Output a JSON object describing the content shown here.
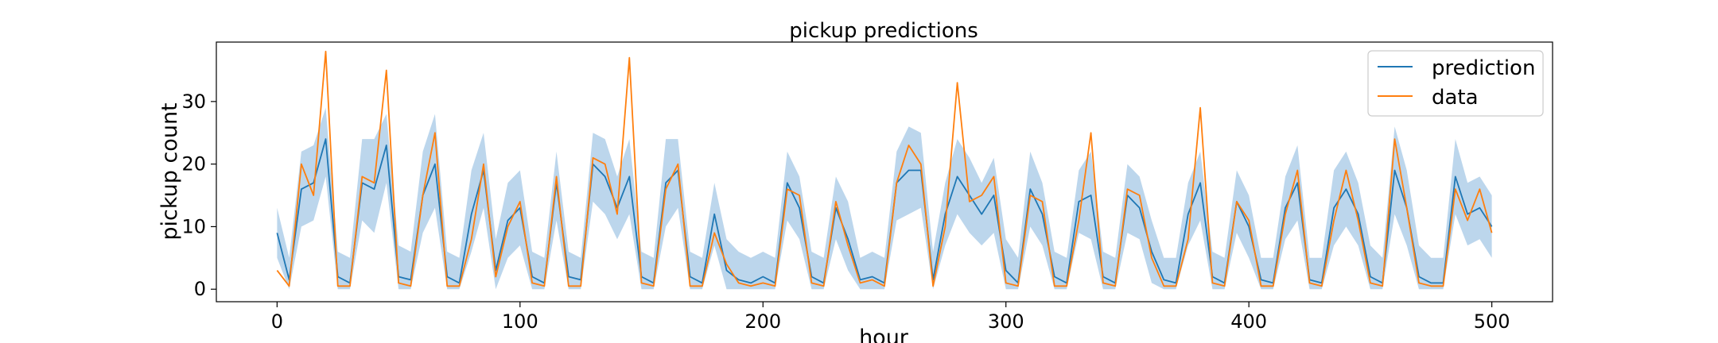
{
  "chart_data": {
    "type": "line",
    "title": "pickup predictions",
    "xlabel": "hour",
    "ylabel": "pickup count",
    "xlim": [
      -25,
      525
    ],
    "ylim": [
      -2,
      39.5
    ],
    "xticks": [
      0,
      100,
      200,
      300,
      400,
      500
    ],
    "yticks": [
      0,
      10,
      20,
      30
    ],
    "grid": false,
    "legend_position": "upper right",
    "colors": {
      "prediction": "#1f77b4",
      "data": "#ff7f0e",
      "band": "#a6c8e6"
    },
    "x": [
      0,
      5,
      10,
      15,
      20,
      25,
      30,
      35,
      40,
      45,
      50,
      55,
      60,
      65,
      70,
      75,
      80,
      85,
      90,
      95,
      100,
      105,
      110,
      115,
      120,
      125,
      130,
      135,
      140,
      145,
      150,
      155,
      160,
      165,
      170,
      175,
      180,
      185,
      190,
      195,
      200,
      205,
      210,
      215,
      220,
      225,
      230,
      235,
      240,
      245,
      250,
      255,
      260,
      265,
      270,
      275,
      280,
      285,
      290,
      295,
      300,
      305,
      310,
      315,
      320,
      325,
      330,
      335,
      340,
      345,
      350,
      355,
      360,
      365,
      370,
      375,
      380,
      385,
      390,
      395,
      400,
      405,
      410,
      415,
      420,
      425,
      430,
      435,
      440,
      445,
      450,
      455,
      460,
      465,
      470,
      475,
      480,
      485,
      490,
      495,
      500
    ],
    "series": [
      {
        "name": "prediction",
        "values": [
          9,
          1.5,
          16,
          17,
          24,
          2,
          1,
          17,
          16,
          23,
          2,
          1.5,
          15,
          20,
          2,
          1,
          12,
          19,
          3,
          11,
          13,
          2,
          1,
          17,
          2,
          1.5,
          20,
          18,
          13,
          18,
          2,
          1,
          17,
          19,
          2,
          1,
          12,
          3,
          1.5,
          1,
          2,
          1,
          17,
          13,
          2,
          1,
          13,
          8,
          1.5,
          2,
          1,
          17,
          19,
          19,
          1.5,
          12,
          18,
          15,
          12,
          15,
          3,
          1,
          16,
          12,
          2,
          1,
          14,
          15,
          2,
          1,
          15,
          13,
          6,
          1.5,
          1,
          12,
          17,
          2,
          1,
          14,
          10,
          1.5,
          1,
          13,
          17,
          1.5,
          1,
          13,
          16,
          12,
          2,
          1,
          19,
          13,
          2,
          1,
          1,
          18,
          12,
          13,
          10
        ],
        "band_upper": [
          13,
          5,
          22,
          23,
          29,
          6,
          5,
          24,
          24,
          28,
          7,
          6,
          22,
          28,
          6,
          5,
          19,
          25,
          8,
          17,
          19,
          6,
          5,
          22,
          6,
          5,
          25,
          24,
          18,
          24,
          6,
          5,
          24,
          24,
          6,
          5,
          17,
          8,
          6,
          5,
          6,
          5,
          22,
          18,
          6,
          5,
          18,
          14,
          5,
          6,
          5,
          22,
          26,
          25,
          6,
          17,
          24,
          21,
          17,
          21,
          8,
          5,
          22,
          17,
          6,
          5,
          19,
          22,
          6,
          5,
          20,
          18,
          11,
          5,
          5,
          17,
          22,
          6,
          5,
          19,
          15,
          5,
          5,
          18,
          23,
          5,
          5,
          19,
          22,
          17,
          7,
          5,
          26,
          19,
          7,
          5,
          5,
          24,
          17,
          18,
          15
        ],
        "band_lower": [
          5,
          0,
          10,
          11,
          18,
          0,
          0,
          11,
          9,
          17,
          0,
          0,
          9,
          13,
          0,
          0,
          6,
          13,
          0,
          5,
          7,
          0,
          0,
          11,
          0,
          0,
          14,
          12,
          8,
          12,
          0,
          0,
          10,
          13,
          0,
          0,
          7,
          0,
          0,
          0,
          0,
          0,
          11,
          8,
          0,
          0,
          8,
          3,
          0,
          0,
          0,
          11,
          12,
          13,
          0,
          7,
          12,
          9,
          7,
          9,
          0,
          0,
          10,
          7,
          0,
          0,
          9,
          8,
          0,
          0,
          9,
          8,
          1,
          0,
          0,
          7,
          11,
          0,
          0,
          9,
          5,
          0,
          0,
          8,
          11,
          0,
          0,
          7,
          10,
          7,
          0,
          0,
          12,
          7,
          0,
          0,
          0,
          12,
          7,
          8,
          5
        ]
      },
      {
        "name": "data",
        "values": [
          3,
          0.5,
          20,
          15,
          38,
          0.5,
          0.5,
          18,
          17,
          35,
          1,
          0.5,
          15,
          25,
          0.5,
          0.5,
          8,
          20,
          2,
          10,
          14,
          1,
          0.5,
          18,
          0.5,
          0.5,
          21,
          20,
          12,
          37,
          1,
          0.5,
          16,
          20,
          0.5,
          0.5,
          9,
          4,
          1,
          0.5,
          1,
          0.5,
          16,
          15,
          1,
          0.5,
          14,
          7,
          1,
          1.5,
          0.5,
          17,
          23,
          20,
          0.5,
          10,
          33,
          14,
          15,
          18,
          1,
          0.5,
          15,
          14,
          0.5,
          0.5,
          11,
          25,
          1,
          0.5,
          16,
          15,
          5,
          0.5,
          0.5,
          8,
          29,
          1,
          0.5,
          14,
          11,
          0.5,
          0.5,
          12,
          19,
          1,
          0.5,
          11,
          19,
          11,
          1,
          0.5,
          24,
          13,
          1,
          0.5,
          0.5,
          16,
          11,
          16,
          9
        ]
      }
    ]
  }
}
